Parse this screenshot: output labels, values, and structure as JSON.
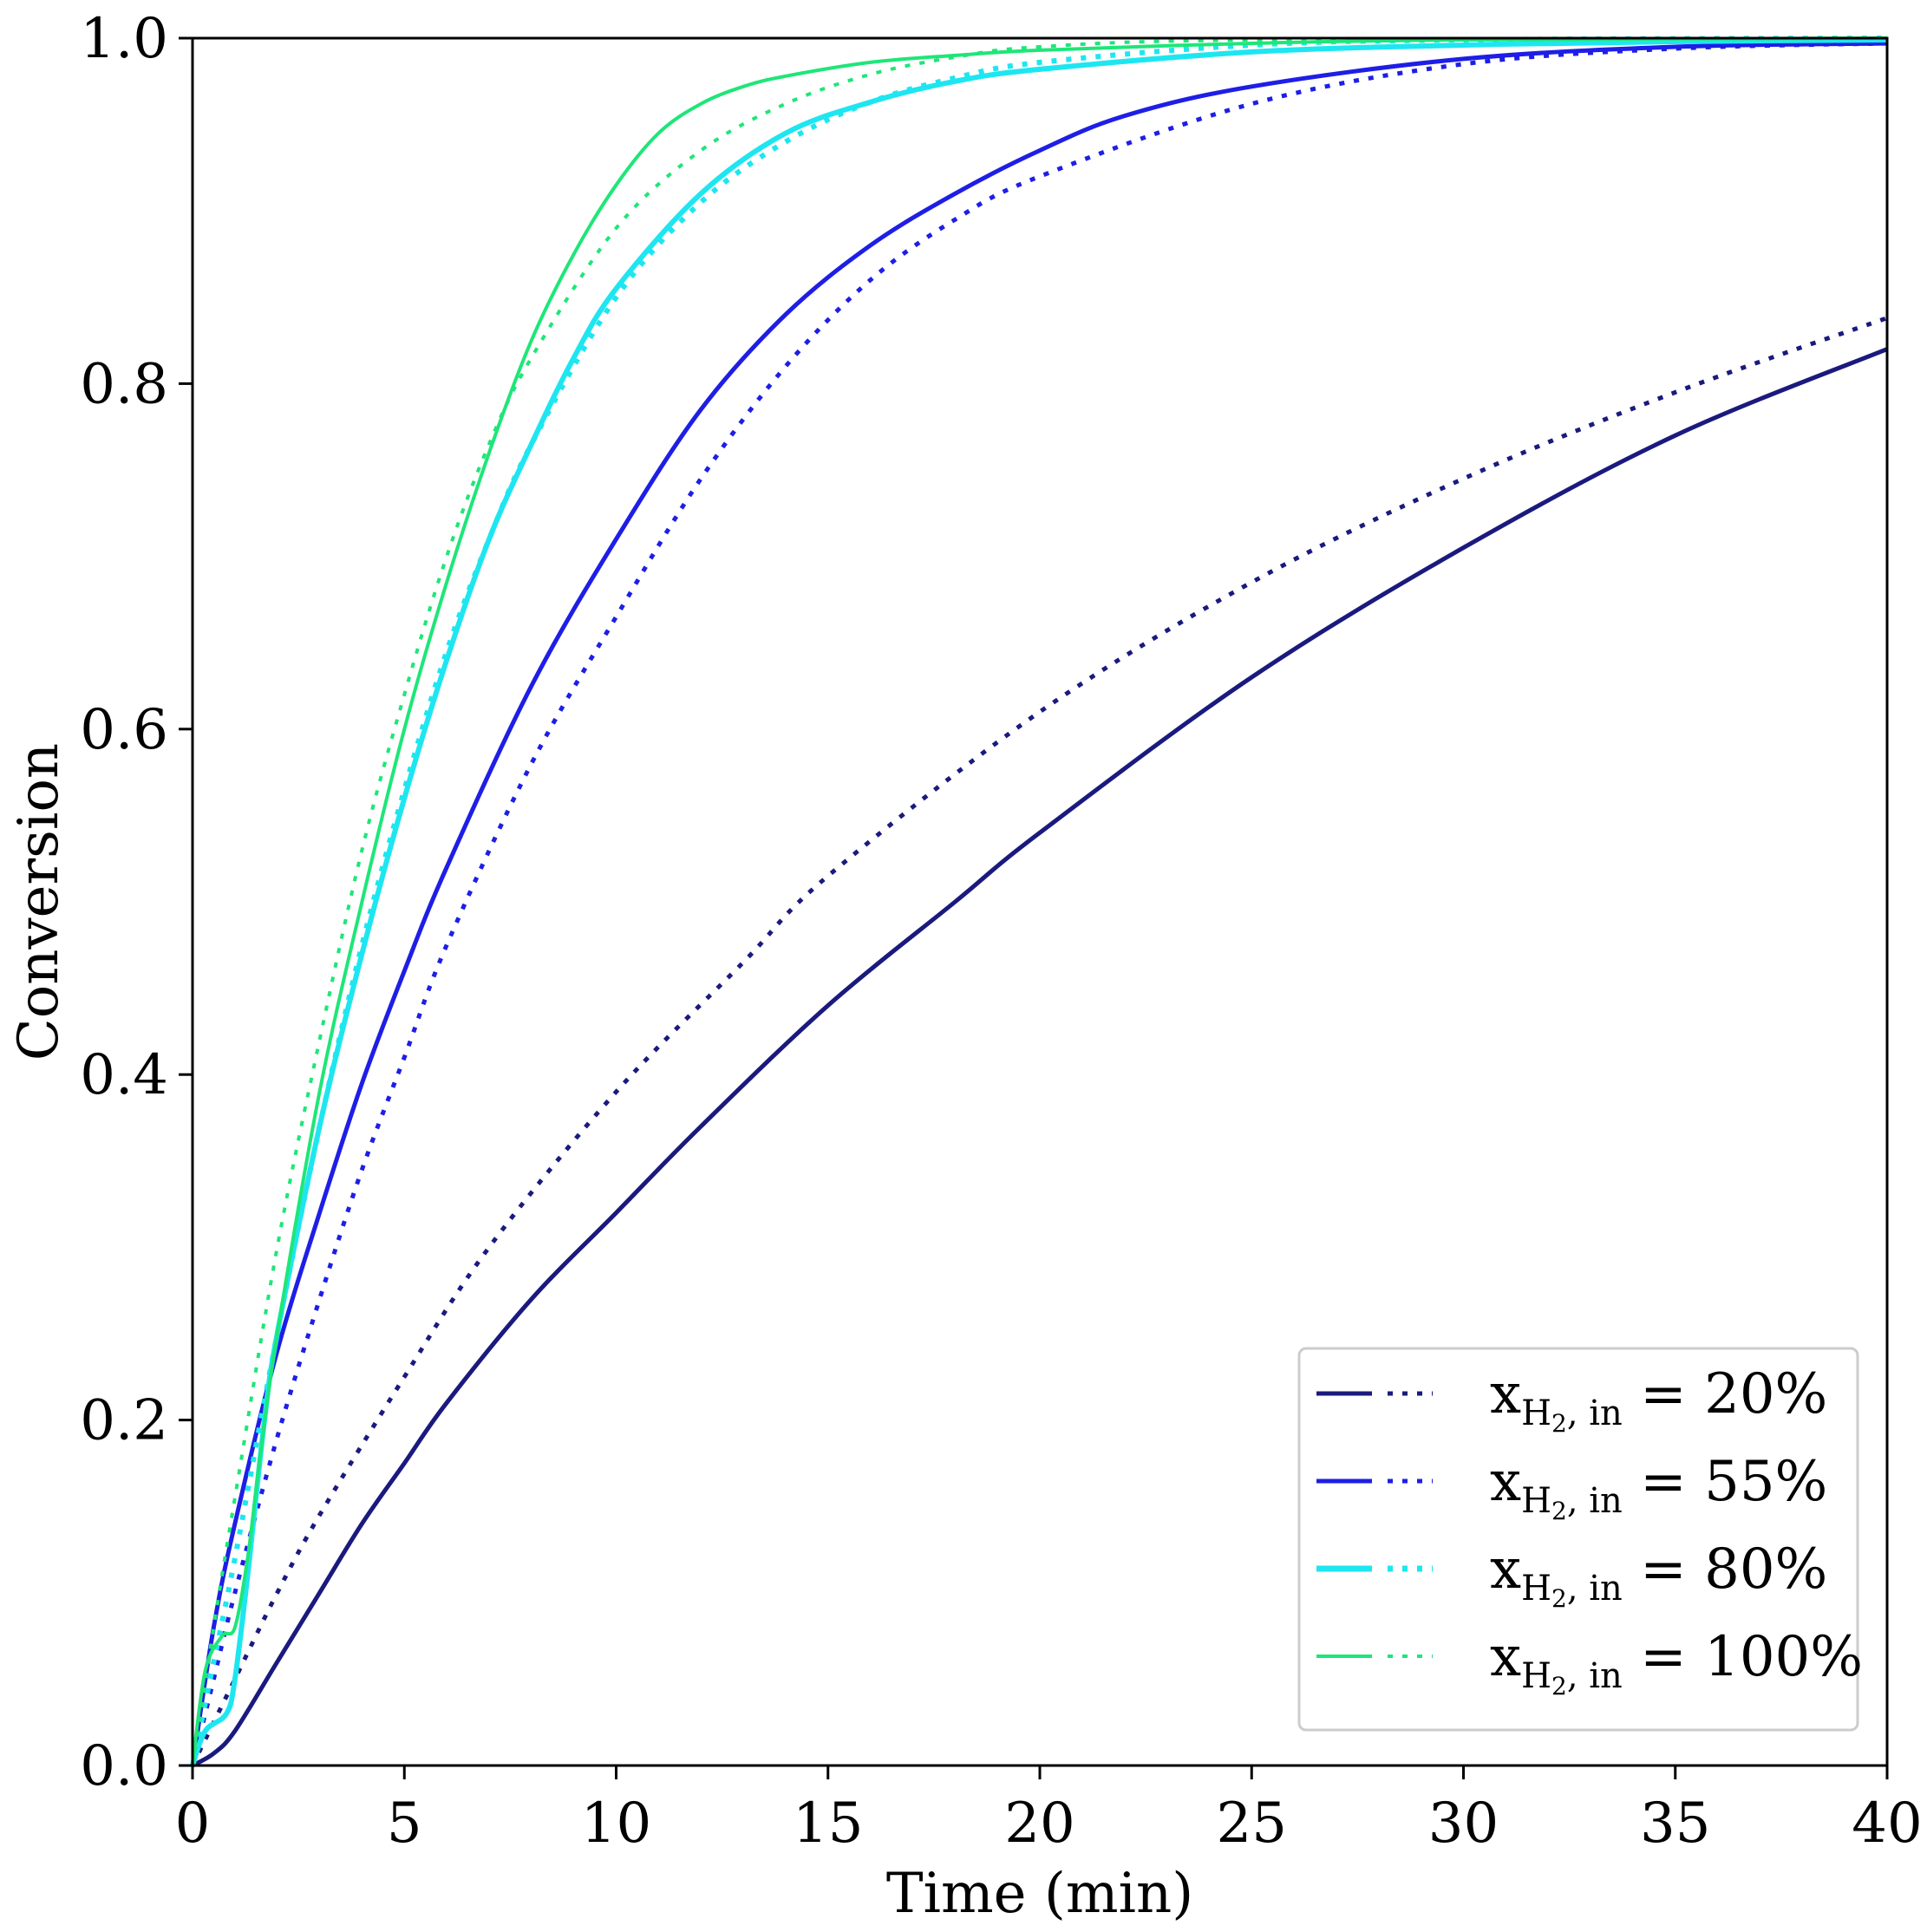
{
  "chart_data": {
    "type": "line",
    "title": "",
    "xlabel": "Time (min)",
    "ylabel": "Conversion",
    "xlim": [
      0,
      40
    ],
    "ylim": [
      0,
      1.0
    ],
    "xticks": [
      0,
      5,
      10,
      15,
      20,
      25,
      30,
      35,
      40
    ],
    "xtick_labels": [
      "0",
      "5",
      "10",
      "15",
      "20",
      "25",
      "30",
      "35",
      "40"
    ],
    "yticks": [
      0,
      0.2,
      0.4,
      0.6,
      0.8,
      1.0
    ],
    "ytick_labels": [
      "0.0",
      "0.2",
      "0.4",
      "0.6",
      "0.8",
      "1.0"
    ],
    "grid": false,
    "legend_position": "bottom-right",
    "legend": [
      {
        "var": "x",
        "sub": "H",
        "subsub": "2",
        "subtail": ", in",
        "rest": " = 20%",
        "color": "#1a1a7e"
      },
      {
        "var": "x",
        "sub": "H",
        "subsub": "2",
        "subtail": ", in",
        "rest": " = 55%",
        "color": "#1e1ee6"
      },
      {
        "var": "x",
        "sub": "H",
        "subsub": "2",
        "subtail": ", in",
        "rest": " = 80%",
        "color": "#1ee6f0"
      },
      {
        "var": "x",
        "sub": "H",
        "subsub": "2",
        "subtail": ", in",
        "rest": " = 100%",
        "color": "#1ee678"
      }
    ],
    "series": [
      {
        "name": "20% (solid)",
        "color": "#1a1a7e",
        "style": "solid",
        "width": 5,
        "x": [
          0,
          0.5,
          1,
          2,
          3,
          4,
          5,
          6,
          8,
          10,
          12,
          15,
          18,
          20,
          25,
          30,
          35,
          40
        ],
        "y": [
          0,
          0.007,
          0.02,
          0.06,
          0.1,
          0.14,
          0.175,
          0.21,
          0.27,
          0.32,
          0.37,
          0.44,
          0.5,
          0.54,
          0.63,
          0.705,
          0.77,
          0.82
        ]
      },
      {
        "name": "20% (dotted)",
        "color": "#1a1a7e",
        "style": "dotted",
        "width": 5,
        "x": [
          0,
          1,
          2,
          3,
          5,
          7,
          10,
          13,
          15,
          20,
          25,
          30,
          35,
          40
        ],
        "y": [
          0,
          0.05,
          0.1,
          0.145,
          0.225,
          0.3,
          0.39,
          0.465,
          0.515,
          0.61,
          0.685,
          0.745,
          0.795,
          0.838
        ]
      },
      {
        "name": "55% (solid)",
        "color": "#1e1ee6",
        "style": "solid",
        "width": 5,
        "x": [
          0,
          0.5,
          1,
          2,
          3,
          4,
          5,
          6,
          8,
          10,
          12,
          14,
          16,
          18,
          20,
          22,
          25,
          30,
          35,
          40
        ],
        "y": [
          0,
          0.08,
          0.14,
          0.24,
          0.32,
          0.395,
          0.46,
          0.52,
          0.625,
          0.71,
          0.785,
          0.84,
          0.88,
          0.91,
          0.935,
          0.955,
          0.972,
          0.988,
          0.995,
          0.997
        ]
      },
      {
        "name": "55% (dotted)",
        "color": "#1e1ee6",
        "style": "dotted",
        "width": 5,
        "x": [
          0,
          0.5,
          1,
          2,
          3,
          4,
          5,
          6,
          8,
          10,
          12,
          14,
          16,
          18,
          20,
          25,
          30,
          35,
          40
        ],
        "y": [
          0,
          0.05,
          0.1,
          0.19,
          0.27,
          0.345,
          0.41,
          0.475,
          0.58,
          0.665,
          0.745,
          0.81,
          0.86,
          0.895,
          0.92,
          0.962,
          0.985,
          0.994,
          0.997
        ]
      },
      {
        "name": "80% (solid)",
        "color": "#1ee6f0",
        "style": "solid",
        "width": 6,
        "x": [
          0,
          0.3,
          0.8,
          1.0,
          1.3,
          1.7,
          2,
          3,
          4,
          5,
          6,
          7,
          8,
          9,
          10,
          12,
          14,
          16,
          18,
          20,
          25,
          30,
          35,
          40
        ],
        "y": [
          0,
          0.02,
          0.03,
          0.05,
          0.11,
          0.2,
          0.25,
          0.37,
          0.47,
          0.56,
          0.64,
          0.71,
          0.765,
          0.815,
          0.855,
          0.91,
          0.945,
          0.963,
          0.975,
          0.982,
          0.992,
          0.996,
          0.998,
          0.999
        ]
      },
      {
        "name": "80% (dotted)",
        "color": "#1ee6f0",
        "style": "dotted",
        "width": 6,
        "x": [
          0,
          0.5,
          1,
          2,
          3,
          4,
          5,
          6,
          7,
          8,
          10,
          12,
          14,
          16,
          18,
          20,
          25,
          30,
          40
        ],
        "y": [
          0,
          0.06,
          0.12,
          0.25,
          0.37,
          0.475,
          0.565,
          0.645,
          0.71,
          0.765,
          0.85,
          0.905,
          0.94,
          0.963,
          0.977,
          0.986,
          0.996,
          0.999,
          1.0
        ]
      },
      {
        "name": "100% (solid)",
        "color": "#1ee678",
        "style": "solid",
        "width": 4,
        "x": [
          0,
          0.3,
          0.7,
          1.0,
          1.3,
          1.6,
          2,
          3,
          4,
          5,
          6,
          7,
          8,
          9,
          10,
          11,
          12,
          13,
          14,
          16,
          18,
          20,
          25,
          30,
          40
        ],
        "y": [
          0,
          0.055,
          0.075,
          0.08,
          0.12,
          0.18,
          0.25,
          0.39,
          0.5,
          0.6,
          0.685,
          0.76,
          0.825,
          0.875,
          0.915,
          0.945,
          0.962,
          0.972,
          0.978,
          0.986,
          0.99,
          0.993,
          0.997,
          0.999,
          1.0
        ]
      },
      {
        "name": "100% (dotted)",
        "color": "#1ee678",
        "style": "dotted",
        "width": 4,
        "x": [
          0,
          0.5,
          1,
          2,
          3,
          4,
          5,
          6,
          7,
          8,
          10,
          12,
          14,
          16,
          18,
          20,
          25,
          40
        ],
        "y": [
          0,
          0.08,
          0.155,
          0.3,
          0.42,
          0.53,
          0.62,
          0.7,
          0.765,
          0.815,
          0.89,
          0.935,
          0.962,
          0.979,
          0.989,
          0.995,
          0.999,
          1.0
        ]
      }
    ]
  }
}
